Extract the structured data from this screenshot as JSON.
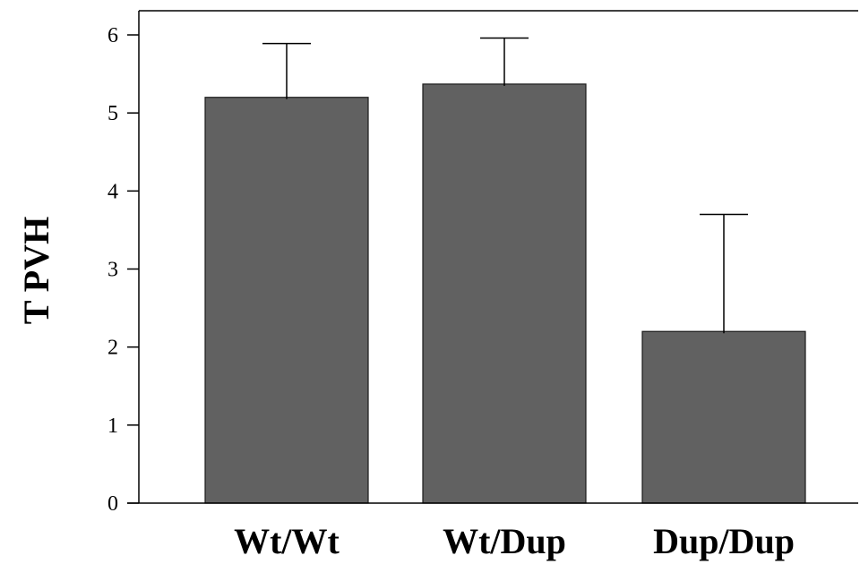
{
  "chart_data": {
    "type": "bar",
    "categories": [
      "Wt/Wt",
      "Wt/Dup",
      "Dup/Dup"
    ],
    "values": [
      5.2,
      5.37,
      2.2
    ],
    "error_upper": [
      5.89,
      5.96,
      3.7
    ],
    "ylabel": "T PVH",
    "xlabel": "",
    "ylim": [
      0,
      6
    ],
    "yticks": [
      0,
      1,
      2,
      3,
      4,
      5,
      6
    ],
    "grid": false,
    "legend": "none",
    "colors": {
      "bar_fill": "#616161",
      "bar_stroke": "#1a1a1a",
      "axis": "#000000"
    }
  }
}
